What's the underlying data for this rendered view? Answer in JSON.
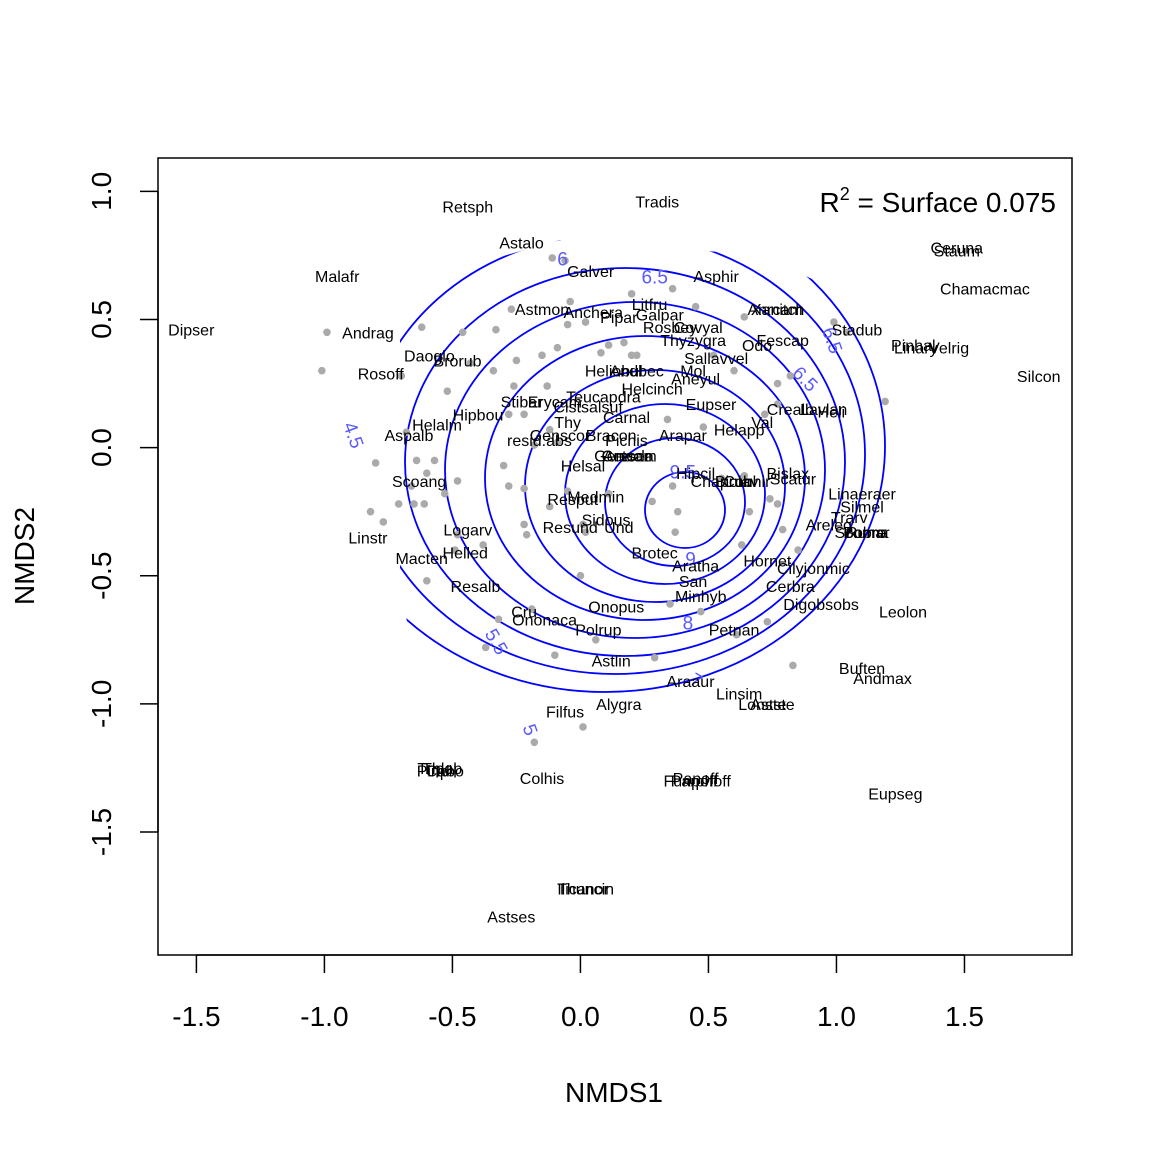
{
  "chart_data": {
    "type": "scatter",
    "title": "",
    "xlabel": "NMDS1",
    "ylabel": "NMDS2",
    "xlim": [
      -1.65,
      1.92
    ],
    "ylim": [
      -1.98,
      1.13
    ],
    "xticks": [
      -1.5,
      -1.0,
      -0.5,
      0.0,
      0.5,
      1.0,
      1.5
    ],
    "yticks": [
      -1.5,
      -1.0,
      -0.5,
      0.0,
      0.5,
      1.0
    ],
    "xtick_labels": [
      "-1.5",
      "-1.0",
      "-0.5",
      "0.0",
      "0.5",
      "1.0",
      "1.5"
    ],
    "ytick_labels": [
      "-1.5",
      "-1.0",
      "-0.5",
      "0.0",
      "0.5",
      "1.0"
    ],
    "annotation": {
      "prefix": "R",
      "superscript": "2",
      "text": " = Surface 0.075"
    },
    "colors": {
      "points": "#aaaaaa",
      "contours": "#0000ff",
      "contour_labels": "#5a5aff",
      "text": "#000000"
    },
    "site_points": [
      [
        -1.01,
        0.3
      ],
      [
        -0.99,
        0.45
      ],
      [
        -0.7,
        0.28
      ],
      [
        -0.62,
        0.47
      ],
      [
        -0.52,
        0.22
      ],
      [
        -0.46,
        0.45
      ],
      [
        -0.43,
        0.33
      ],
      [
        -0.34,
        0.3
      ],
      [
        -0.33,
        0.46
      ],
      [
        -0.27,
        0.54
      ],
      [
        -0.26,
        0.24
      ],
      [
        -0.25,
        0.34
      ],
      [
        -0.15,
        0.36
      ],
      [
        -0.13,
        0.24
      ],
      [
        -0.09,
        0.39
      ],
      [
        -0.11,
        0.74
      ],
      [
        -0.06,
        0.73
      ],
      [
        -0.04,
        0.57
      ],
      [
        -0.05,
        0.48
      ],
      [
        0.02,
        0.49
      ],
      [
        0.08,
        0.37
      ],
      [
        0.11,
        0.4
      ],
      [
        0.17,
        0.41
      ],
      [
        0.2,
        0.36
      ],
      [
        0.22,
        0.36
      ],
      [
        0.2,
        0.6
      ],
      [
        0.36,
        0.62
      ],
      [
        0.45,
        0.55
      ],
      [
        0.52,
        0.36
      ],
      [
        0.6,
        0.3
      ],
      [
        0.64,
        0.51
      ],
      [
        0.77,
        0.25
      ],
      [
        0.72,
        0.13
      ],
      [
        0.77,
        0.17
      ],
      [
        0.82,
        0.28
      ],
      [
        0.99,
        0.49
      ],
      [
        1.04,
        0.45
      ],
      [
        1.19,
        0.18
      ],
      [
        -0.68,
        0.06
      ],
      [
        -0.64,
        -0.05
      ],
      [
        -0.66,
        -0.15
      ],
      [
        -0.65,
        -0.22
      ],
      [
        -0.6,
        -0.1
      ],
      [
        -0.61,
        -0.22
      ],
      [
        -0.57,
        -0.05
      ],
      [
        -0.53,
        -0.18
      ],
      [
        -0.48,
        -0.13
      ],
      [
        -0.8,
        -0.06
      ],
      [
        -0.82,
        -0.25
      ],
      [
        -0.77,
        -0.29
      ],
      [
        -0.71,
        -0.22
      ],
      [
        -0.3,
        -0.07
      ],
      [
        -0.28,
        0.13
      ],
      [
        -0.22,
        0.13
      ],
      [
        -0.18,
        0.01
      ],
      [
        -0.28,
        -0.15
      ],
      [
        -0.22,
        -0.16
      ],
      [
        -0.12,
        0.07
      ],
      [
        -0.09,
        0.02
      ],
      [
        -0.05,
        -0.17
      ],
      [
        -0.12,
        -0.23
      ],
      [
        0.01,
        -0.3
      ],
      [
        -0.22,
        -0.3
      ],
      [
        -0.21,
        -0.34
      ],
      [
        0.11,
        -0.18
      ],
      [
        0.02,
        -0.33
      ],
      [
        0.28,
        -0.21
      ],
      [
        0.36,
        -0.15
      ],
      [
        0.38,
        -0.25
      ],
      [
        0.37,
        -0.33
      ],
      [
        0.34,
        0.11
      ],
      [
        0.48,
        0.08
      ],
      [
        0.55,
        -0.12
      ],
      [
        0.64,
        -0.11
      ],
      [
        0.66,
        -0.25
      ],
      [
        0.74,
        -0.2
      ],
      [
        0.77,
        -0.22
      ],
      [
        0.79,
        -0.32
      ],
      [
        0.85,
        -0.4
      ],
      [
        0.63,
        -0.38
      ],
      [
        0.0,
        -0.5
      ],
      [
        -0.6,
        -0.52
      ],
      [
        -0.32,
        -0.67
      ],
      [
        -0.19,
        -0.63
      ],
      [
        -0.37,
        -0.78
      ],
      [
        -0.1,
        -0.81
      ],
      [
        0.06,
        -0.75
      ],
      [
        0.29,
        -0.82
      ],
      [
        0.35,
        -0.61
      ],
      [
        0.47,
        -0.64
      ],
      [
        0.61,
        -0.73
      ],
      [
        0.73,
        -0.68
      ],
      [
        0.83,
        -0.85
      ],
      [
        0.01,
        -1.09
      ],
      [
        -0.18,
        -1.15
      ],
      [
        -0.48,
        -0.34
      ],
      [
        -0.49,
        -0.4
      ],
      [
        -0.38,
        -0.38
      ]
    ],
    "species": [
      {
        "name": "Retsph",
        "x": -0.44,
        "y": 0.94
      },
      {
        "name": "Tradis",
        "x": 0.3,
        "y": 0.96
      },
      {
        "name": "Astalo",
        "x": -0.23,
        "y": 0.8
      },
      {
        "name": "Malafr",
        "x": -0.95,
        "y": 0.67
      },
      {
        "name": "Galver",
        "x": 0.04,
        "y": 0.69
      },
      {
        "name": "Asphir",
        "x": 0.53,
        "y": 0.67
      },
      {
        "name": "Dipser",
        "x": -1.52,
        "y": 0.46
      },
      {
        "name": "Andrag",
        "x": -0.83,
        "y": 0.45
      },
      {
        "name": "Astmon",
        "x": -0.15,
        "y": 0.54
      },
      {
        "name": "Anchera",
        "x": 0.05,
        "y": 0.53
      },
      {
        "name": "Litfru",
        "x": 0.27,
        "y": 0.56
      },
      {
        "name": "Galpar",
        "x": 0.31,
        "y": 0.52
      },
      {
        "name": "Pipar",
        "x": 0.15,
        "y": 0.51
      },
      {
        "name": "Rosbey",
        "x": 0.35,
        "y": 0.47
      },
      {
        "name": "Covyal",
        "x": 0.46,
        "y": 0.47
      },
      {
        "name": "Thyzygra",
        "x": 0.44,
        "y": 0.42
      },
      {
        "name": "Odo",
        "x": 0.69,
        "y": 0.4
      },
      {
        "name": "Xanitch",
        "x": 0.77,
        "y": 0.54
      },
      {
        "name": "Anrcam",
        "x": 0.76,
        "y": 0.54
      },
      {
        "name": "Fescap",
        "x": 0.79,
        "y": 0.42
      },
      {
        "name": "Stadub",
        "x": 1.08,
        "y": 0.46
      },
      {
        "name": "Ceruna",
        "x": 1.47,
        "y": 0.78
      },
      {
        "name": "Staum",
        "x": 1.47,
        "y": 0.77
      },
      {
        "name": "Chamacmac",
        "x": 1.58,
        "y": 0.62
      },
      {
        "name": "Pinhal",
        "x": 1.3,
        "y": 0.4
      },
      {
        "name": "Linary",
        "x": 1.31,
        "y": 0.39
      },
      {
        "name": "Velrig",
        "x": 1.44,
        "y": 0.39
      },
      {
        "name": "Silcon",
        "x": 1.79,
        "y": 0.28
      },
      {
        "name": "Daoglo",
        "x": -0.59,
        "y": 0.36
      },
      {
        "name": "Brorub",
        "x": -0.48,
        "y": 0.34
      },
      {
        "name": "Rosoff",
        "x": -0.78,
        "y": 0.29
      },
      {
        "name": "Heliobul",
        "x": 0.13,
        "y": 0.3
      },
      {
        "name": "Andbec",
        "x": 0.22,
        "y": 0.3
      },
      {
        "name": "Mol",
        "x": 0.44,
        "y": 0.3
      },
      {
        "name": "Sallavvel",
        "x": 0.53,
        "y": 0.35
      },
      {
        "name": "Aneyul",
        "x": 0.45,
        "y": 0.27
      },
      {
        "name": "Helcinch",
        "x": 0.28,
        "y": 0.23
      },
      {
        "name": "Teucapdra",
        "x": 0.09,
        "y": 0.2
      },
      {
        "name": "Stibar",
        "x": -0.23,
        "y": 0.18
      },
      {
        "name": "Erycam",
        "x": -0.1,
        "y": 0.18
      },
      {
        "name": "Cistsalsuf",
        "x": 0.03,
        "y": 0.16
      },
      {
        "name": "Eupser",
        "x": 0.51,
        "y": 0.17
      },
      {
        "name": "Crealb",
        "x": 0.82,
        "y": 0.15
      },
      {
        "name": "Lavlan",
        "x": 0.95,
        "y": 0.15
      },
      {
        "name": "Heli",
        "x": 0.98,
        "y": 0.14
      },
      {
        "name": "Hipbou",
        "x": -0.4,
        "y": 0.13
      },
      {
        "name": "Helalm",
        "x": -0.56,
        "y": 0.09
      },
      {
        "name": "Aspalb",
        "x": -0.67,
        "y": 0.05
      },
      {
        "name": "Carnal",
        "x": 0.18,
        "y": 0.12
      },
      {
        "name": "Thy",
        "x": -0.05,
        "y": 0.1
      },
      {
        "name": "Helapp",
        "x": 0.62,
        "y": 0.07
      },
      {
        "name": "Val",
        "x": 0.71,
        "y": 0.1
      },
      {
        "name": "resid.abs",
        "x": -0.16,
        "y": 0.03
      },
      {
        "name": "Genscor",
        "x": -0.08,
        "y": 0.05
      },
      {
        "name": "Bracon",
        "x": 0.12,
        "y": 0.05
      },
      {
        "name": "Pichis",
        "x": 0.18,
        "y": 0.03
      },
      {
        "name": "Arapar",
        "x": 0.4,
        "y": 0.05
      },
      {
        "name": "Areser",
        "x": 0.18,
        "y": -0.03
      },
      {
        "name": "Genacla",
        "x": 0.17,
        "y": -0.03
      },
      {
        "name": "Cetcam",
        "x": 0.19,
        "y": -0.03
      },
      {
        "name": "Helsal",
        "x": 0.01,
        "y": -0.07
      },
      {
        "name": "Hipcil",
        "x": 0.45,
        "y": -0.1
      },
      {
        "name": "Chaprub",
        "x": 0.55,
        "y": -0.13
      },
      {
        "name": "Conhir",
        "x": 0.65,
        "y": -0.13
      },
      {
        "name": "Biolav",
        "x": 0.61,
        "y": -0.13
      },
      {
        "name": "Bislax",
        "x": 0.81,
        "y": -0.1
      },
      {
        "name": "Scatur",
        "x": 0.83,
        "y": -0.12
      },
      {
        "name": "Scoang",
        "x": -0.63,
        "y": -0.13
      },
      {
        "name": "Medmin",
        "x": 0.06,
        "y": -0.19
      },
      {
        "name": "Resput",
        "x": -0.03,
        "y": -0.2
      },
      {
        "name": "Linaeraer",
        "x": 1.1,
        "y": -0.18
      },
      {
        "name": "Silmel",
        "x": 1.1,
        "y": -0.23
      },
      {
        "name": "Trarv",
        "x": 1.05,
        "y": -0.27
      },
      {
        "name": "Sidous",
        "x": 0.1,
        "y": -0.28
      },
      {
        "name": "Resund",
        "x": -0.04,
        "y": -0.31
      },
      {
        "name": "Und",
        "x": 0.15,
        "y": -0.31
      },
      {
        "name": "Areleg",
        "x": 0.97,
        "y": -0.3
      },
      {
        "name": "Bobro",
        "x": 1.11,
        "y": -0.33
      },
      {
        "name": "Ruma",
        "x": 1.12,
        "y": -0.33
      },
      {
        "name": "Scomar",
        "x": 1.1,
        "y": -0.33
      },
      {
        "name": "Logarv",
        "x": -0.44,
        "y": -0.32
      },
      {
        "name": "Linstr",
        "x": -0.83,
        "y": -0.35
      },
      {
        "name": "Brotec",
        "x": 0.29,
        "y": -0.41
      },
      {
        "name": "Helled",
        "x": -0.45,
        "y": -0.41
      },
      {
        "name": "Macten",
        "x": -0.62,
        "y": -0.43
      },
      {
        "name": "Hornet",
        "x": 0.73,
        "y": -0.44
      },
      {
        "name": "Cilyjonmic",
        "x": 0.91,
        "y": -0.47
      },
      {
        "name": "Aratha",
        "x": 0.45,
        "y": -0.46
      },
      {
        "name": "San",
        "x": 0.44,
        "y": -0.52
      },
      {
        "name": "Resalb",
        "x": -0.41,
        "y": -0.54
      },
      {
        "name": "Cerbra",
        "x": 0.82,
        "y": -0.54
      },
      {
        "name": "Minhyb",
        "x": 0.47,
        "y": -0.58
      },
      {
        "name": "Digobsobs",
        "x": 0.94,
        "y": -0.61
      },
      {
        "name": "Leolon",
        "x": 1.26,
        "y": -0.64
      },
      {
        "name": "Onopus",
        "x": 0.14,
        "y": -0.62
      },
      {
        "name": "Cru",
        "x": -0.22,
        "y": -0.64
      },
      {
        "name": "Ononaca",
        "x": -0.14,
        "y": -0.67
      },
      {
        "name": "Polrup",
        "x": 0.07,
        "y": -0.71
      },
      {
        "name": "Petnan",
        "x": 0.6,
        "y": -0.71
      },
      {
        "name": "Astlin",
        "x": 0.12,
        "y": -0.83
      },
      {
        "name": "Buften",
        "x": 1.1,
        "y": -0.86
      },
      {
        "name": "Andmax",
        "x": 1.18,
        "y": -0.9
      },
      {
        "name": "Araaur",
        "x": 0.43,
        "y": -0.91
      },
      {
        "name": "Linsim",
        "x": 0.62,
        "y": -0.96
      },
      {
        "name": "Lonste",
        "x": 0.71,
        "y": -1.0
      },
      {
        "name": "Astste",
        "x": 0.75,
        "y": -1.0
      },
      {
        "name": "Alygra",
        "x": 0.15,
        "y": -1.0
      },
      {
        "name": "Filfus",
        "x": -0.06,
        "y": -1.03
      },
      {
        "name": "Tripol",
        "x": -0.56,
        "y": -1.25
      },
      {
        "name": "Pinpl",
        "x": -0.57,
        "y": -1.26
      },
      {
        "name": "Thlap",
        "x": -0.54,
        "y": -1.25
      },
      {
        "name": "Cabo",
        "x": -0.53,
        "y": -1.26
      },
      {
        "name": "Colhis",
        "x": -0.15,
        "y": -1.29
      },
      {
        "name": "Panoff",
        "x": 0.45,
        "y": -1.29
      },
      {
        "name": "Parphoff",
        "x": 0.47,
        "y": -1.3
      },
      {
        "name": "Funpoff",
        "x": 0.43,
        "y": -1.3
      },
      {
        "name": "Eupseg",
        "x": 1.23,
        "y": -1.35
      },
      {
        "name": "Ilicanor",
        "x": 0.01,
        "y": -1.72
      },
      {
        "name": "Thuncin",
        "x": 0.02,
        "y": -1.72
      },
      {
        "name": "Astses",
        "x": -0.27,
        "y": -1.83
      }
    ],
    "contour_labels": [
      {
        "text": "4.5",
        "x": -0.91,
        "y": 0.04,
        "rotate": 70
      },
      {
        "text": "5",
        "x": -0.22,
        "y": -1.11,
        "rotate": 70
      },
      {
        "text": "5.5",
        "x": -0.35,
        "y": -0.77,
        "rotate": 60
      },
      {
        "text": "6",
        "x": -0.07,
        "y": 0.71,
        "rotate": 0
      },
      {
        "text": "6.5",
        "x": 0.29,
        "y": 0.64,
        "rotate": 0
      },
      {
        "text": "6.5",
        "x": 0.96,
        "y": 0.41,
        "rotate": 70
      },
      {
        "text": "6.5",
        "x": 0.86,
        "y": 0.25,
        "rotate": 45
      },
      {
        "text": "7",
        "x": 0.44,
        "y": -0.93,
        "rotate": 30
      },
      {
        "text": "8",
        "x": 0.42,
        "y": -0.71,
        "rotate": 0
      },
      {
        "text": "9",
        "x": 0.43,
        "y": -0.46,
        "rotate": 0
      },
      {
        "text": "9.5",
        "x": 0.4,
        "y": -0.12,
        "rotate": 0
      }
    ]
  }
}
